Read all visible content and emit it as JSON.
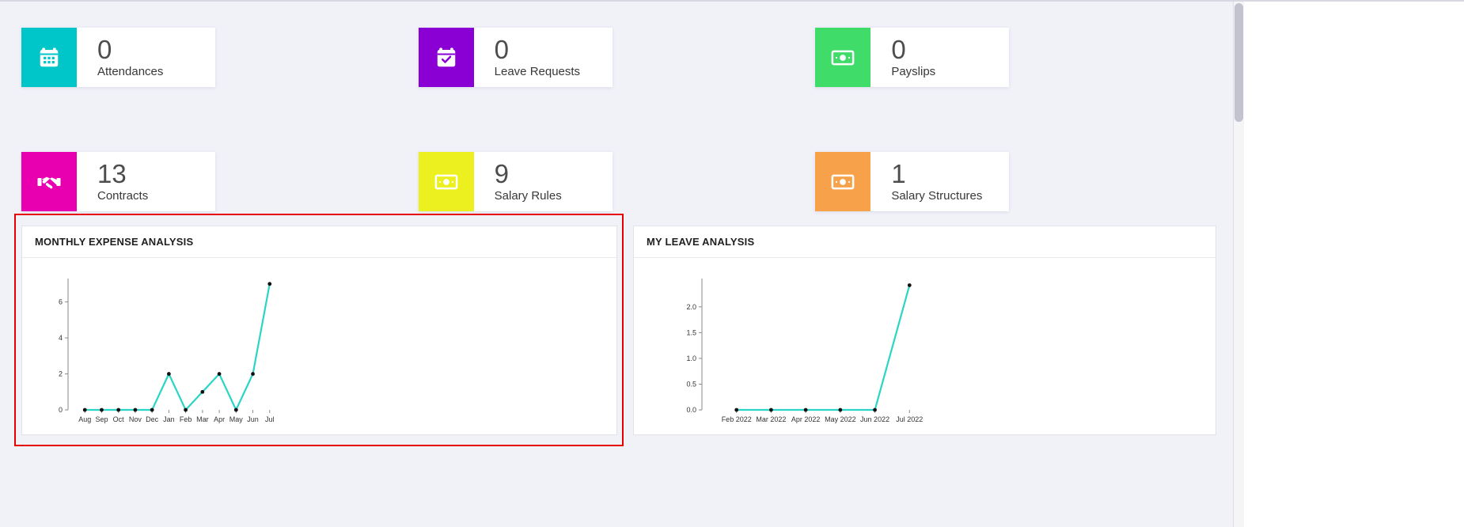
{
  "cards": [
    {
      "value": "0",
      "label": "Attendances",
      "color": "#00c6c9",
      "icon": "calendar-icon"
    },
    {
      "value": "0",
      "label": "Leave Requests",
      "color": "#8a00d4",
      "icon": "calendar-check-icon"
    },
    {
      "value": "0",
      "label": "Payslips",
      "color": "#3fdc6a",
      "icon": "money-bill-icon"
    },
    {
      "value": "13",
      "label": "Contracts",
      "color": "#e800b0",
      "icon": "handshake-icon"
    },
    {
      "value": "9",
      "label": "Salary Rules",
      "color": "#ecf01f",
      "icon": "money-bill-icon"
    },
    {
      "value": "1",
      "label": "Salary Structures",
      "color": "#f7a24a",
      "icon": "money-bill-icon"
    }
  ],
  "panels": [
    {
      "title": "MONTHLY EXPENSE ANALYSIS"
    },
    {
      "title": "MY LEAVE ANALYSIS"
    }
  ],
  "chart_data": [
    {
      "type": "line",
      "title": "MONTHLY EXPENSE ANALYSIS",
      "categories": [
        "Aug",
        "Sep",
        "Oct",
        "Nov",
        "Dec",
        "Jan",
        "Feb",
        "Mar",
        "Apr",
        "May",
        "Jun",
        "Jul"
      ],
      "values": [
        0,
        0,
        0,
        0,
        0,
        2,
        0,
        1,
        2,
        0,
        2,
        7
      ],
      "yticks": [
        "0",
        "2",
        "4",
        "6"
      ],
      "ylim": [
        0,
        7.3
      ],
      "line_color": "#2bd5c6",
      "point_color": "#111111",
      "grid": false,
      "legend": "none"
    },
    {
      "type": "line",
      "title": "MY LEAVE ANALYSIS",
      "categories": [
        "Feb 2022",
        "Mar 2022",
        "Apr 2022",
        "May 2022",
        "Jun 2022",
        "Jul 2022"
      ],
      "values": [
        0,
        0,
        0,
        0,
        0,
        2.42
      ],
      "yticks": [
        "0.0",
        "0.5",
        "1.0",
        "1.5",
        "2.0"
      ],
      "ylim": [
        0,
        2.55
      ],
      "line_color": "#2bd5c6",
      "point_color": "#111111",
      "grid": false,
      "legend": "none"
    }
  ],
  "annotation": {
    "color": "#e60000"
  }
}
